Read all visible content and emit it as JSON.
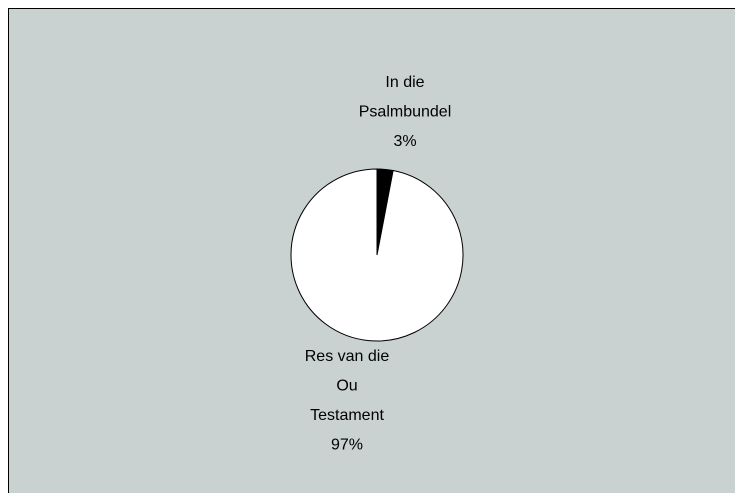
{
  "chart_data": {
    "type": "pie",
    "categories": [
      "In die Psalmbundel",
      "Res van die Ou Testament"
    ],
    "values": [
      3,
      97
    ],
    "value_labels": [
      "3%",
      "97%"
    ],
    "colors": [
      "#000000",
      "#ffffff"
    ]
  }
}
